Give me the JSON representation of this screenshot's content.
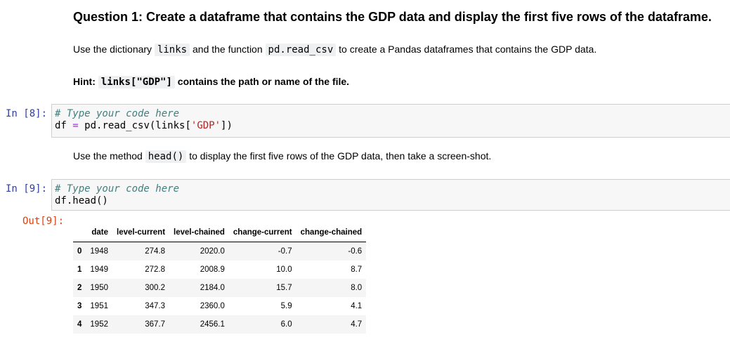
{
  "question_title": "Question 1: Create a dataframe that contains the GDP data and display the first five rows of the dataframe.",
  "para1": {
    "t1": "Use the dictionary ",
    "c1": "links",
    "t2": " and the function ",
    "c2": "pd.read_csv",
    "t3": " to create a Pandas dataframes that contains the GDP data."
  },
  "hint": {
    "label": "Hint: ",
    "code": "links[\"GDP\"]",
    "text": " contains the path or name of the file."
  },
  "cell8": {
    "prompt": "In [8]:",
    "comment": "# Type your code here",
    "line2_pre": "df ",
    "line2_eq": "=",
    "line2_mid": " pd.read_csv(links[",
    "line2_str": "'GDP'",
    "line2_end": "])"
  },
  "para2": {
    "t1": "Use the method ",
    "c1": "head()",
    "t2": " to display the first five rows of the GDP data, then take a screen-shot."
  },
  "cell9": {
    "prompt": "In [9]:",
    "comment": "# Type your code here",
    "line2": "df.head()",
    "out_prompt": "Out[9]:"
  },
  "table": {
    "headers": [
      "",
      "date",
      "level-current",
      "level-chained",
      "change-current",
      "change-chained"
    ],
    "rows": [
      [
        "0",
        "1948",
        "274.8",
        "2020.0",
        "-0.7",
        "-0.6"
      ],
      [
        "1",
        "1949",
        "272.8",
        "2008.9",
        "10.0",
        "8.7"
      ],
      [
        "2",
        "1950",
        "300.2",
        "2184.0",
        "15.7",
        "8.0"
      ],
      [
        "3",
        "1951",
        "347.3",
        "2360.0",
        "5.9",
        "4.1"
      ],
      [
        "4",
        "1952",
        "367.7",
        "2456.1",
        "6.0",
        "4.7"
      ]
    ]
  }
}
